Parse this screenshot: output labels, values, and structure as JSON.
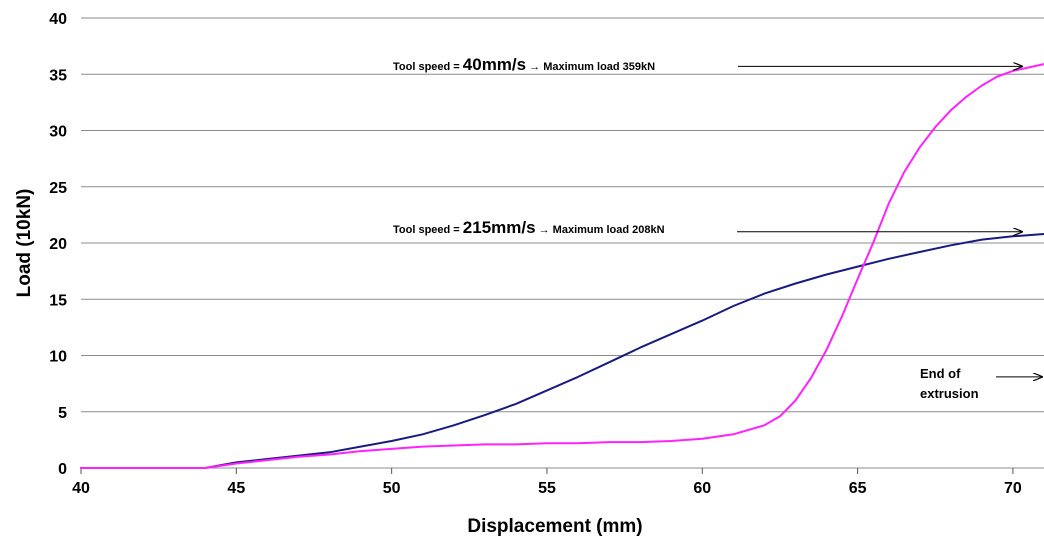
{
  "chart_data": {
    "type": "line",
    "title": "",
    "xlabel": "Displacement (mm)",
    "ylabel": "Load (10kN)",
    "xlim": [
      40,
      71
    ],
    "ylim": [
      0,
      40
    ],
    "x_ticks": [
      "40",
      "45",
      "50",
      "55",
      "60",
      "65",
      "70"
    ],
    "y_ticks": [
      "0",
      "5",
      "10",
      "15",
      "20",
      "25",
      "30",
      "35",
      "40"
    ],
    "grid": "horizontal",
    "colors": {
      "tool_speed_215": "#1a1a80",
      "tool_speed_40": "#ff22ff"
    },
    "series": [
      {
        "key": "tool_speed_215",
        "x": [
          40,
          44,
          45,
          46,
          47,
          48,
          49,
          50,
          51,
          52,
          53,
          54,
          55,
          56,
          57,
          58,
          59,
          60,
          61,
          62,
          63,
          64,
          65,
          66,
          67,
          68,
          69,
          70,
          71
        ],
        "y": [
          0,
          0,
          0.5,
          0.8,
          1.1,
          1.4,
          1.9,
          2.4,
          3.0,
          3.8,
          4.7,
          5.7,
          6.9,
          8.1,
          9.4,
          10.7,
          11.9,
          13.1,
          14.4,
          15.5,
          16.4,
          17.2,
          17.9,
          18.6,
          19.2,
          19.8,
          20.3,
          20.6,
          20.8
        ]
      },
      {
        "key": "tool_speed_40",
        "x": [
          40,
          44,
          45,
          46,
          47,
          48,
          49,
          50,
          51,
          52,
          53,
          54,
          55,
          56,
          57,
          58,
          59,
          60,
          61,
          62,
          62.5,
          63,
          63.5,
          64,
          64.5,
          65,
          65.5,
          66,
          66.5,
          67,
          67.5,
          68,
          68.5,
          69,
          69.5,
          70,
          70.5,
          71
        ],
        "y": [
          0,
          0,
          0.4,
          0.7,
          1.0,
          1.2,
          1.5,
          1.7,
          1.9,
          2.0,
          2.1,
          2.1,
          2.2,
          2.2,
          2.3,
          2.3,
          2.4,
          2.6,
          3.0,
          3.8,
          4.6,
          6.0,
          8.0,
          10.5,
          13.5,
          16.8,
          20.0,
          23.5,
          26.3,
          28.5,
          30.3,
          31.8,
          33.0,
          34.0,
          34.8,
          35.3,
          35.6,
          35.9
        ]
      }
    ],
    "annotations": [
      {
        "key": "ann40",
        "prefix": "Tool speed = ",
        "speed": "40mm/s",
        "suffix": " → Maximum load 359kN",
        "arrow_to_x": 71,
        "arrow_y": 35.7
      },
      {
        "key": "ann215",
        "prefix": "Tool speed = ",
        "speed": "215mm/s",
        "suffix": " → Maximum load 208kN",
        "arrow_to_x": 71,
        "arrow_y": 21.0
      },
      {
        "key": "end",
        "line1": "End of",
        "line2": "extrusion",
        "arrow_to_x": 71,
        "arrow_y": 8.1
      }
    ]
  }
}
